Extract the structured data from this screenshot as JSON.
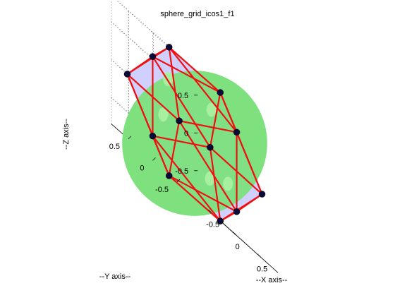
{
  "figure": {
    "title": "sphere_grid_icos1_f1",
    "xlabel": "--X axis--",
    "ylabel": "--Y axis--",
    "zlabel": "--Z axis--",
    "colors": {
      "sphere": "#7ee07e",
      "sphere_highlight": "#a6f0a0",
      "triangle_fill": "#c8c8ff",
      "edge": "#ee1111",
      "vertex": "#0a0a3a",
      "grid": "#555555"
    }
  },
  "chart_data": {
    "type": "scatter",
    "title": "sphere_grid_icos1_f1",
    "xlabel": "--X axis--",
    "ylabel": "--Y axis--",
    "zlabel": "--Z axis--",
    "xlim": [
      -0.85,
      0.85
    ],
    "ylim": [
      -0.85,
      0.85
    ],
    "zlim": [
      -0.85,
      0.85
    ],
    "xticks": [
      "-0.5",
      "0",
      "0.5"
    ],
    "yticks": [
      "-0.5",
      "0",
      "0.5"
    ],
    "zticks": [
      "-0.5",
      "0",
      "0.5"
    ],
    "grid": true,
    "vertices": [
      {
        "x": 0.0,
        "y": 0.526,
        "z": 0.851
      },
      {
        "x": 0.0,
        "y": -0.526,
        "z": 0.851
      },
      {
        "x": 0.0,
        "y": 0.526,
        "z": -0.851
      },
      {
        "x": 0.0,
        "y": -0.526,
        "z": -0.851
      },
      {
        "x": 0.526,
        "y": 0.851,
        "z": 0.0
      },
      {
        "x": -0.526,
        "y": 0.851,
        "z": 0.0
      },
      {
        "x": 0.526,
        "y": -0.851,
        "z": 0.0
      },
      {
        "x": -0.526,
        "y": -0.851,
        "z": 0.0
      },
      {
        "x": 0.851,
        "y": 0.0,
        "z": 0.526
      },
      {
        "x": -0.851,
        "y": 0.0,
        "z": 0.526
      },
      {
        "x": 0.851,
        "y": 0.0,
        "z": -0.526
      },
      {
        "x": -0.851,
        "y": 0.0,
        "z": -0.526
      }
    ],
    "faces": [
      [
        0,
        1,
        8
      ],
      [
        0,
        8,
        4
      ],
      [
        0,
        4,
        5
      ],
      [
        0,
        5,
        9
      ],
      [
        0,
        9,
        1
      ],
      [
        1,
        6,
        8
      ],
      [
        8,
        6,
        10
      ],
      [
        8,
        10,
        4
      ],
      [
        4,
        10,
        2
      ],
      [
        4,
        2,
        5
      ],
      [
        5,
        2,
        11
      ],
      [
        5,
        11,
        9
      ],
      [
        9,
        11,
        7
      ],
      [
        9,
        7,
        1
      ],
      [
        1,
        7,
        6
      ],
      [
        3,
        6,
        7
      ],
      [
        3,
        10,
        6
      ],
      [
        3,
        2,
        10
      ],
      [
        3,
        11,
        2
      ],
      [
        3,
        7,
        11
      ]
    ],
    "sphere_radius": 0.75
  }
}
